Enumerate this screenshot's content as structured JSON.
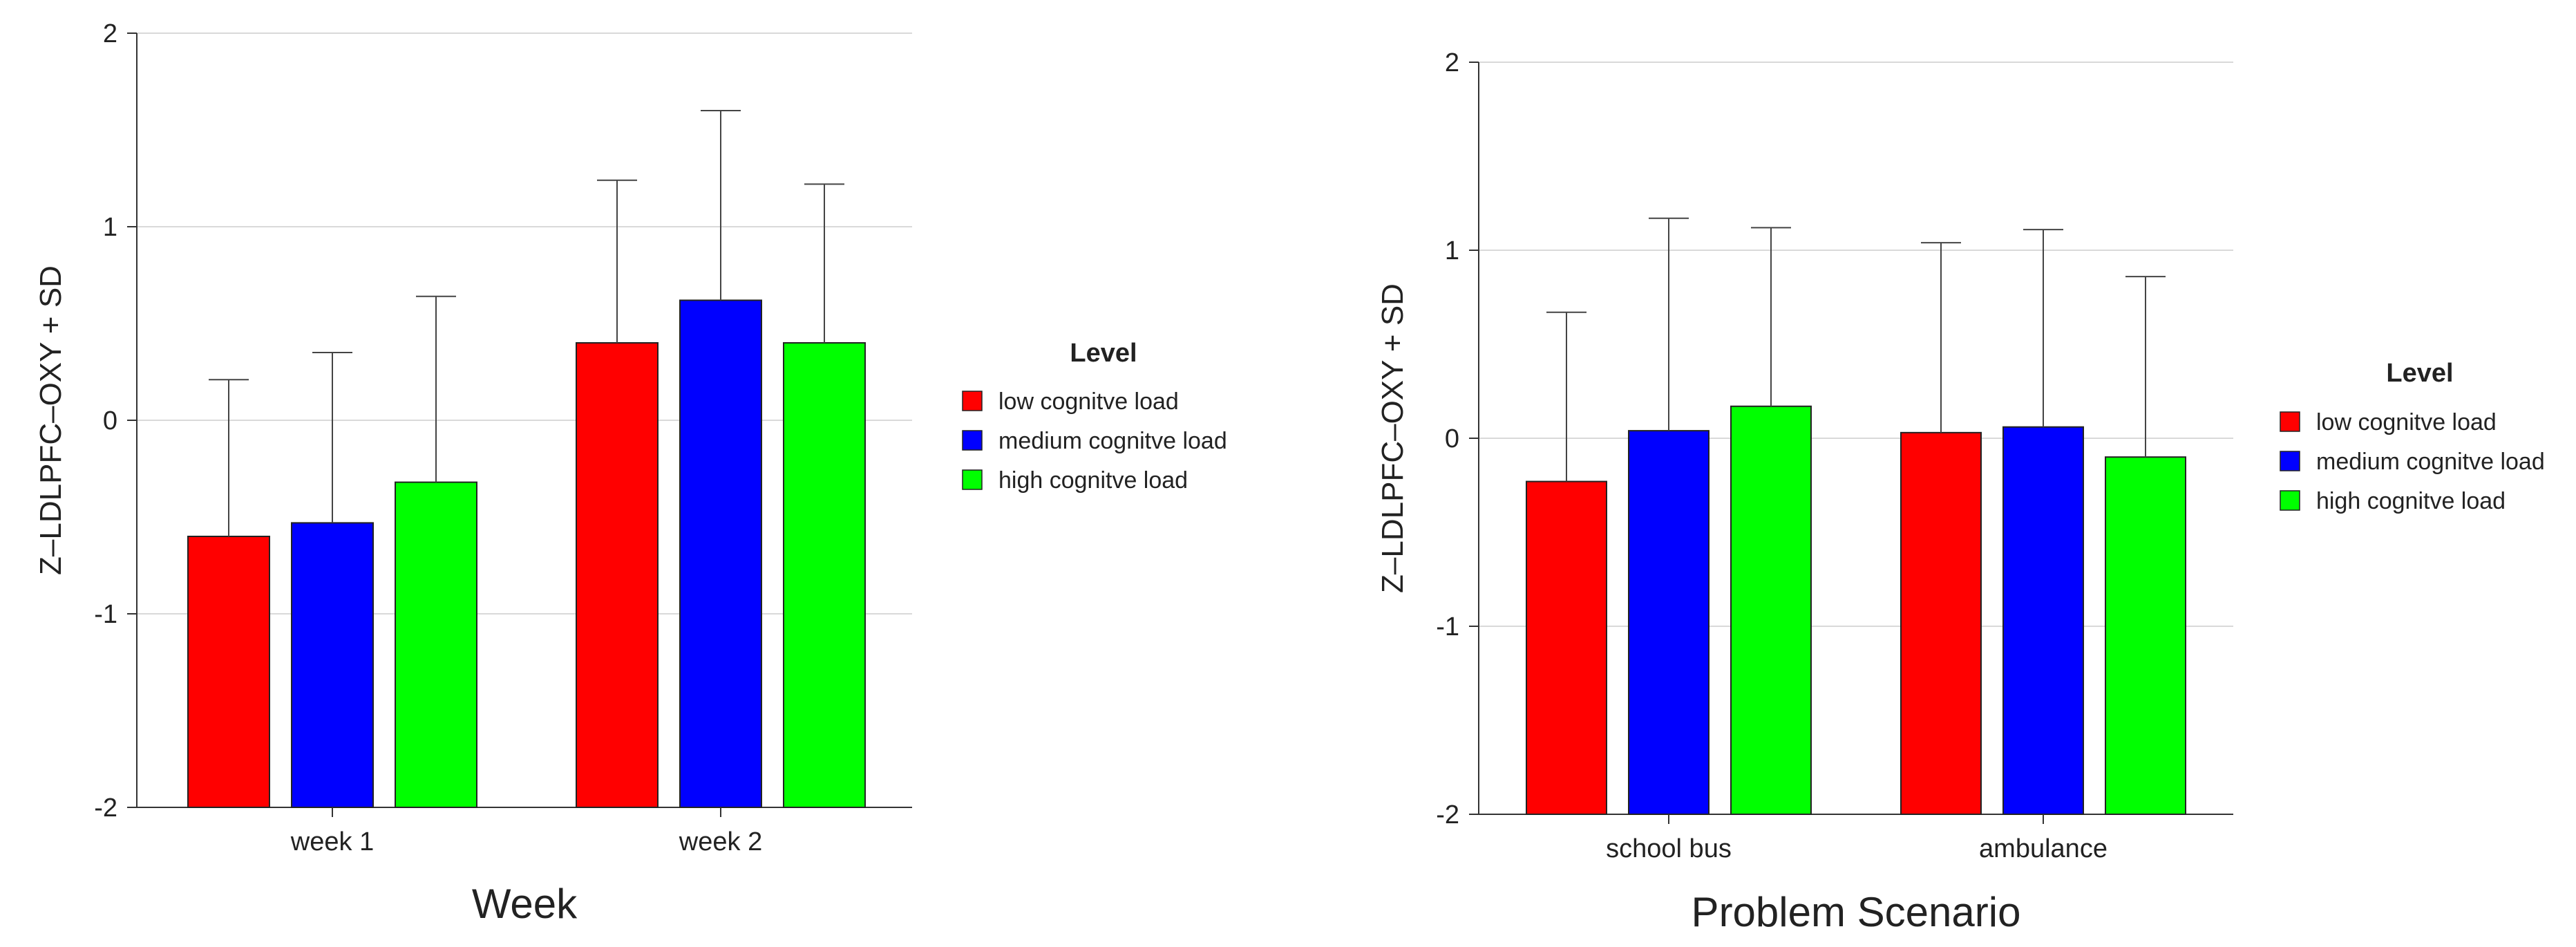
{
  "chart_data": [
    {
      "type": "bar",
      "xlabel": "Week",
      "ylabel": "Z–LDLPFC–OXY + SD",
      "categories": [
        "week 1",
        "week 2"
      ],
      "ylim": [
        -2,
        2
      ],
      "yticks": [
        "-2",
        "-1",
        "0",
        "1",
        "2"
      ],
      "grid": true,
      "legend": {
        "title": "Level",
        "placement": "right"
      },
      "series": [
        {
          "name": "low cognitve load",
          "color": "#ff0000",
          "values": [
            -0.6,
            0.4
          ],
          "sd": [
            0.81,
            0.84
          ]
        },
        {
          "name": "medium cognitve load",
          "color": "#0000ff",
          "values": [
            -0.53,
            0.62
          ],
          "sd": [
            0.88,
            0.98
          ]
        },
        {
          "name": "high cognitve load",
          "color": "#00ff00",
          "values": [
            -0.32,
            0.4
          ],
          "sd": [
            0.96,
            0.82
          ]
        }
      ]
    },
    {
      "type": "bar",
      "xlabel": "Problem Scenario",
      "ylabel": "Z–LDLPFC–OXY + SD",
      "categories": [
        "school bus",
        "ambulance"
      ],
      "ylim": [
        -2,
        2
      ],
      "yticks": [
        "-2",
        "-1",
        "0",
        "1",
        "2"
      ],
      "grid": true,
      "legend": {
        "title": "Level",
        "placement": "right"
      },
      "series": [
        {
          "name": "low cognitve load",
          "color": "#ff0000",
          "values": [
            -0.23,
            0.03
          ],
          "sd": [
            0.9,
            1.01
          ]
        },
        {
          "name": "medium cognitve load",
          "color": "#0000ff",
          "values": [
            0.04,
            0.06
          ],
          "sd": [
            1.13,
            1.05
          ]
        },
        {
          "name": "high cognitve load",
          "color": "#00ff00",
          "values": [
            0.17,
            -0.1
          ],
          "sd": [
            0.95,
            0.96
          ]
        }
      ]
    }
  ]
}
